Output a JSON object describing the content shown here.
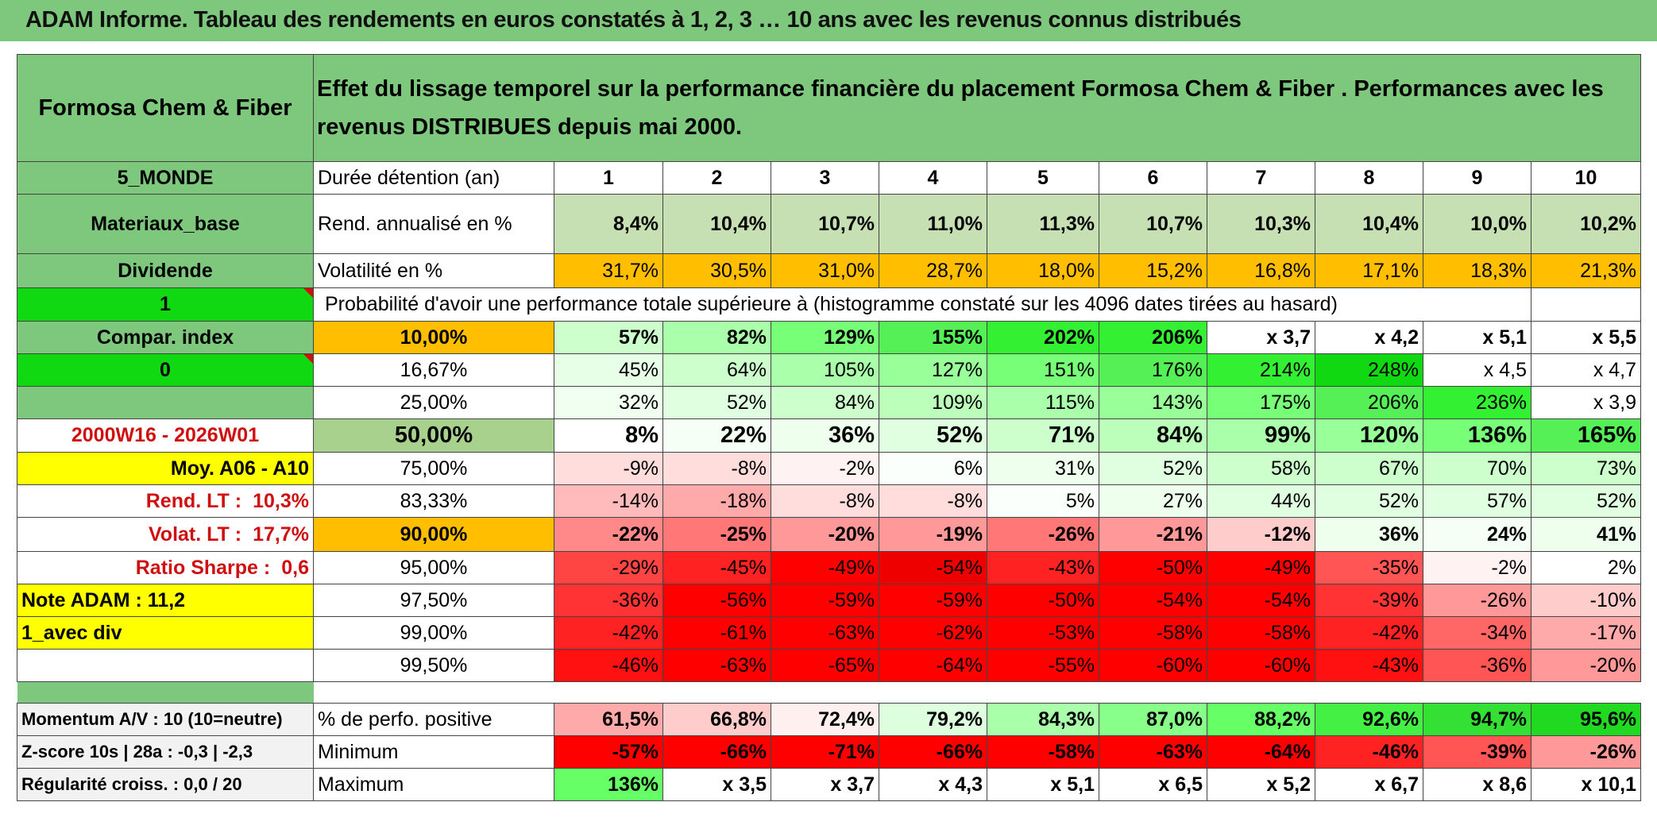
{
  "title": "ADAM Informe. Tableau des rendements en euros constatés à 1, 2, 3 … 10 ans avec les revenus connus distribués",
  "header": {
    "name": "Formosa Chem & Fiber",
    "description": "Effet du lissage temporel sur la performance financière du placement Formosa Chem & Fiber . Performances avec les revenus DISTRIBUES depuis mai 2000."
  },
  "side": {
    "region": "5_MONDE",
    "sector": "Materiaux_base",
    "type": "Dividende",
    "flag1": "1",
    "compar_index": "Compar. index",
    "flag0": "0",
    "period": "2000W16 - 2026W01",
    "moy": "Moy. A06 - A10",
    "rend_lt_label": "Rend. LT :",
    "rend_lt_value": "10,3%",
    "volat_lt_label": "Volat. LT :",
    "volat_lt_value": "17,7%",
    "sharpe_label": "Ratio Sharpe :",
    "sharpe_value": "0,6",
    "note_adam": "Note ADAM : 11,2",
    "avec_div": "1_avec div",
    "momentum": "Momentum A/V : 10 (10=neutre)",
    "zscore": "Z-score 10s | 28a : -0,3 | -2,3",
    "regularite": "Régularité croiss. : 0,0 / 20"
  },
  "labels": {
    "duree": "Durée détention (an)",
    "rend": "Rend. annualisé en %",
    "volat": "Volatilité en %",
    "proba": "Probabilité d'avoir une performance totale supérieure à (histogramme constaté sur les 4096 dates tirées au hasard)",
    "perfo_pos": "% de perfo. positive",
    "minimum": "Minimum",
    "maximum": "Maximum"
  },
  "years": [
    "1",
    "2",
    "3",
    "4",
    "5",
    "6",
    "7",
    "8",
    "9",
    "10"
  ],
  "rend": [
    "8,4%",
    "10,4%",
    "10,7%",
    "11,0%",
    "11,3%",
    "10,7%",
    "10,3%",
    "10,4%",
    "10,0%",
    "10,2%"
  ],
  "volat": [
    "31,7%",
    "30,5%",
    "31,0%",
    "28,7%",
    "18,0%",
    "15,2%",
    "16,8%",
    "17,1%",
    "18,3%",
    "21,3%"
  ],
  "prob_rows": [
    {
      "pct": "10,00%",
      "values": [
        "57%",
        "82%",
        "129%",
        "155%",
        "202%",
        "206%",
        "x 3,7",
        "x 4,2",
        "x 5,1",
        "x 5,5"
      ]
    },
    {
      "pct": "16,67%",
      "values": [
        "45%",
        "64%",
        "105%",
        "127%",
        "151%",
        "176%",
        "214%",
        "248%",
        "x 4,5",
        "x 4,7"
      ]
    },
    {
      "pct": "25,00%",
      "values": [
        "32%",
        "52%",
        "84%",
        "109%",
        "115%",
        "143%",
        "175%",
        "206%",
        "236%",
        "x 3,9"
      ]
    },
    {
      "pct": "50,00%",
      "values": [
        "8%",
        "22%",
        "36%",
        "52%",
        "71%",
        "84%",
        "99%",
        "120%",
        "136%",
        "165%"
      ]
    },
    {
      "pct": "75,00%",
      "values": [
        "-9%",
        "-8%",
        "-2%",
        "6%",
        "31%",
        "52%",
        "58%",
        "67%",
        "70%",
        "73%"
      ]
    },
    {
      "pct": "83,33%",
      "values": [
        "-14%",
        "-18%",
        "-8%",
        "-8%",
        "5%",
        "27%",
        "44%",
        "52%",
        "57%",
        "52%"
      ]
    },
    {
      "pct": "90,00%",
      "values": [
        "-22%",
        "-25%",
        "-20%",
        "-19%",
        "-26%",
        "-21%",
        "-12%",
        "36%",
        "24%",
        "41%"
      ]
    },
    {
      "pct": "95,00%",
      "values": [
        "-29%",
        "-45%",
        "-49%",
        "-54%",
        "-43%",
        "-50%",
        "-49%",
        "-35%",
        "-2%",
        "2%"
      ]
    },
    {
      "pct": "97,50%",
      "values": [
        "-36%",
        "-56%",
        "-59%",
        "-59%",
        "-50%",
        "-54%",
        "-54%",
        "-39%",
        "-26%",
        "-10%"
      ]
    },
    {
      "pct": "99,00%",
      "values": [
        "-42%",
        "-61%",
        "-63%",
        "-62%",
        "-53%",
        "-58%",
        "-58%",
        "-42%",
        "-34%",
        "-17%"
      ]
    },
    {
      "pct": "99,50%",
      "values": [
        "-46%",
        "-63%",
        "-65%",
        "-64%",
        "-55%",
        "-60%",
        "-60%",
        "-43%",
        "-36%",
        "-20%"
      ]
    }
  ],
  "perfo_pos": [
    "61,5%",
    "66,8%",
    "72,4%",
    "79,2%",
    "84,3%",
    "87,0%",
    "88,2%",
    "92,6%",
    "94,7%",
    "95,6%"
  ],
  "minimum": [
    "-57%",
    "-66%",
    "-71%",
    "-66%",
    "-58%",
    "-63%",
    "-64%",
    "-46%",
    "-39%",
    "-26%"
  ],
  "maximum": [
    "136%",
    "x 3,5",
    "x 3,7",
    "x 4,3",
    "x 5,1",
    "x 6,5",
    "x 5,2",
    "x 6,7",
    "x 8,6",
    "x 10,1"
  ],
  "colors": {
    "title_bg": "#7dc87d",
    "bright_green": "#11d911",
    "yellow": "#ffff00",
    "orange": "#ffbf00",
    "label_red": "#d01010",
    "prob_row_colors": [
      [
        "#ccffcc",
        "#aaffaa",
        "#77ff77",
        "#55f055",
        "#33f033",
        "#33f033",
        "#ffffff",
        "#ffffff",
        "#ffffff",
        "#ffffff"
      ],
      [
        "#e6ffe6",
        "#ccffcc",
        "#aaffaa",
        "#99ff99",
        "#77ff77",
        "#55f055",
        "#33f033",
        "#11d911",
        "#ffffff",
        "#ffffff"
      ],
      [
        "#f0fff0",
        "#e0ffe0",
        "#ccffcc",
        "#bbffbb",
        "#aaffaa",
        "#99ff99",
        "#77ff77",
        "#55f055",
        "#33f033",
        "#ffffff"
      ],
      [
        "#ffffff",
        "#f5fff5",
        "#eeffee",
        "#e0ffe0",
        "#ccffcc",
        "#bbffbb",
        "#aaffaa",
        "#99ff99",
        "#77ff77",
        "#55f055"
      ],
      [
        "#ffdddd",
        "#ffdddd",
        "#fff2f2",
        "#fbfffb",
        "#eeffee",
        "#e0ffe0",
        "#ccffcc",
        "#ccffcc",
        "#ccffcc",
        "#ccffcc"
      ],
      [
        "#ffbbbb",
        "#ffaaaa",
        "#ffdddd",
        "#ffdddd",
        "#fbfffb",
        "#eeffee",
        "#e0ffe0",
        "#e0ffe0",
        "#e0ffe0",
        "#e0ffe0"
      ],
      [
        "#ff8888",
        "#ff7777",
        "#ff9999",
        "#ff9999",
        "#ff7777",
        "#ff9999",
        "#ffcccc",
        "#eeffee",
        "#f5fff5",
        "#eeffee"
      ],
      [
        "#ff4444",
        "#ff2222",
        "#ff0000",
        "#ee0000",
        "#ff2222",
        "#ff0000",
        "#ff0000",
        "#ff5555",
        "#fff2f2",
        "#ffffff"
      ],
      [
        "#ff3333",
        "#ff0000",
        "#ff0000",
        "#ff0000",
        "#ff0000",
        "#ff0000",
        "#ff0000",
        "#ff3333",
        "#ff9999",
        "#ffcccc"
      ],
      [
        "#ff2222",
        "#ff0000",
        "#ff0000",
        "#ff0000",
        "#ff0000",
        "#ff0000",
        "#ff0000",
        "#ff2222",
        "#ff6666",
        "#ffaaaa"
      ],
      [
        "#ff1111",
        "#ff0000",
        "#ff0000",
        "#ff0000",
        "#ff0000",
        "#ff0000",
        "#ff0000",
        "#ff1111",
        "#ff5555",
        "#ff9999"
      ]
    ],
    "rend_colors": [
      "#c6e0b4",
      "#c6e0b4",
      "#c6e0b4",
      "#c6e0b4",
      "#c6e0b4",
      "#c6e0b4",
      "#c6e0b4",
      "#c6e0b4",
      "#c6e0b4",
      "#c6e0b4"
    ],
    "perfo_colors": [
      "#ffaaaa",
      "#ffcccc",
      "#fff0f0",
      "#ddffdd",
      "#aaffaa",
      "#88ff88",
      "#66ff66",
      "#44f044",
      "#33e033",
      "#22d922"
    ],
    "min_colors": [
      "#ff0000",
      "#ff0000",
      "#ff0000",
      "#ff0000",
      "#ff0000",
      "#ff0000",
      "#ff0000",
      "#ff2222",
      "#ff5555",
      "#ff9999"
    ],
    "max_colors": [
      "#66ff66",
      "#ffffff",
      "#ffffff",
      "#ffffff",
      "#ffffff",
      "#ffffff",
      "#ffffff",
      "#ffffff",
      "#ffffff",
      "#ffffff"
    ]
  }
}
